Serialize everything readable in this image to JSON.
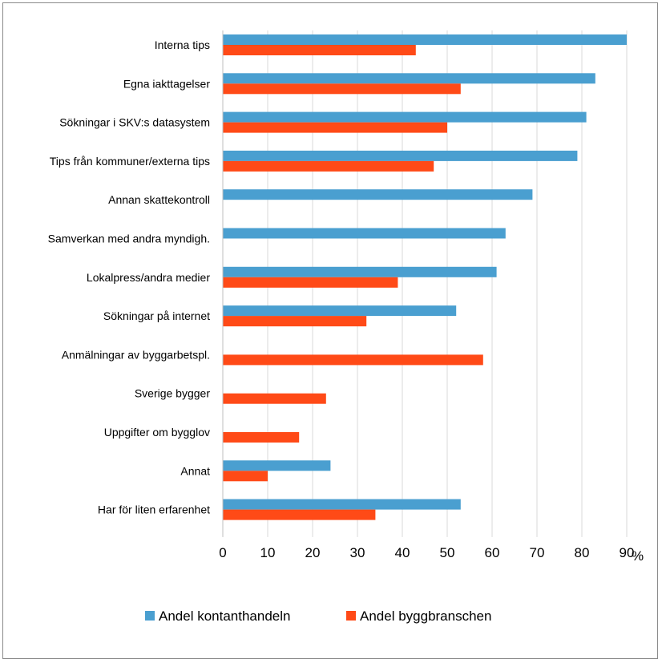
{
  "chart_data": {
    "type": "bar",
    "orientation": "horizontal",
    "categories": [
      "Interna tips",
      "Egna iakttagelser",
      "Sökningar i SKV:s datasystem",
      "Tips från kommuner/externa tips",
      "Annan skattekontroll",
      "Samverkan med andra myndigh.",
      "Lokalpress/andra medier",
      "Sökningar på internet",
      "Anmälningar av byggarbetspl.",
      "Sverige bygger",
      "Uppgifter om bygglov",
      "Annat",
      "Har för liten erfarenhet"
    ],
    "series": [
      {
        "name": "Andel kontanthandeln",
        "color": "#4a9fd0",
        "values": [
          90,
          83,
          81,
          79,
          69,
          63,
          61,
          52,
          null,
          null,
          null,
          24,
          53
        ]
      },
      {
        "name": "Andel byggbranschen",
        "color": "#ff4a17",
        "values": [
          43,
          53,
          50,
          47,
          null,
          null,
          39,
          32,
          58,
          23,
          17,
          10,
          34
        ]
      }
    ],
    "x_ticks": [
      "0",
      "10",
      "20",
      "30",
      "40",
      "50",
      "60",
      "70",
      "80",
      "90"
    ],
    "x_unit": "%",
    "xlim": [
      0,
      90
    ],
    "grid": true,
    "legend_position": "bottom"
  }
}
